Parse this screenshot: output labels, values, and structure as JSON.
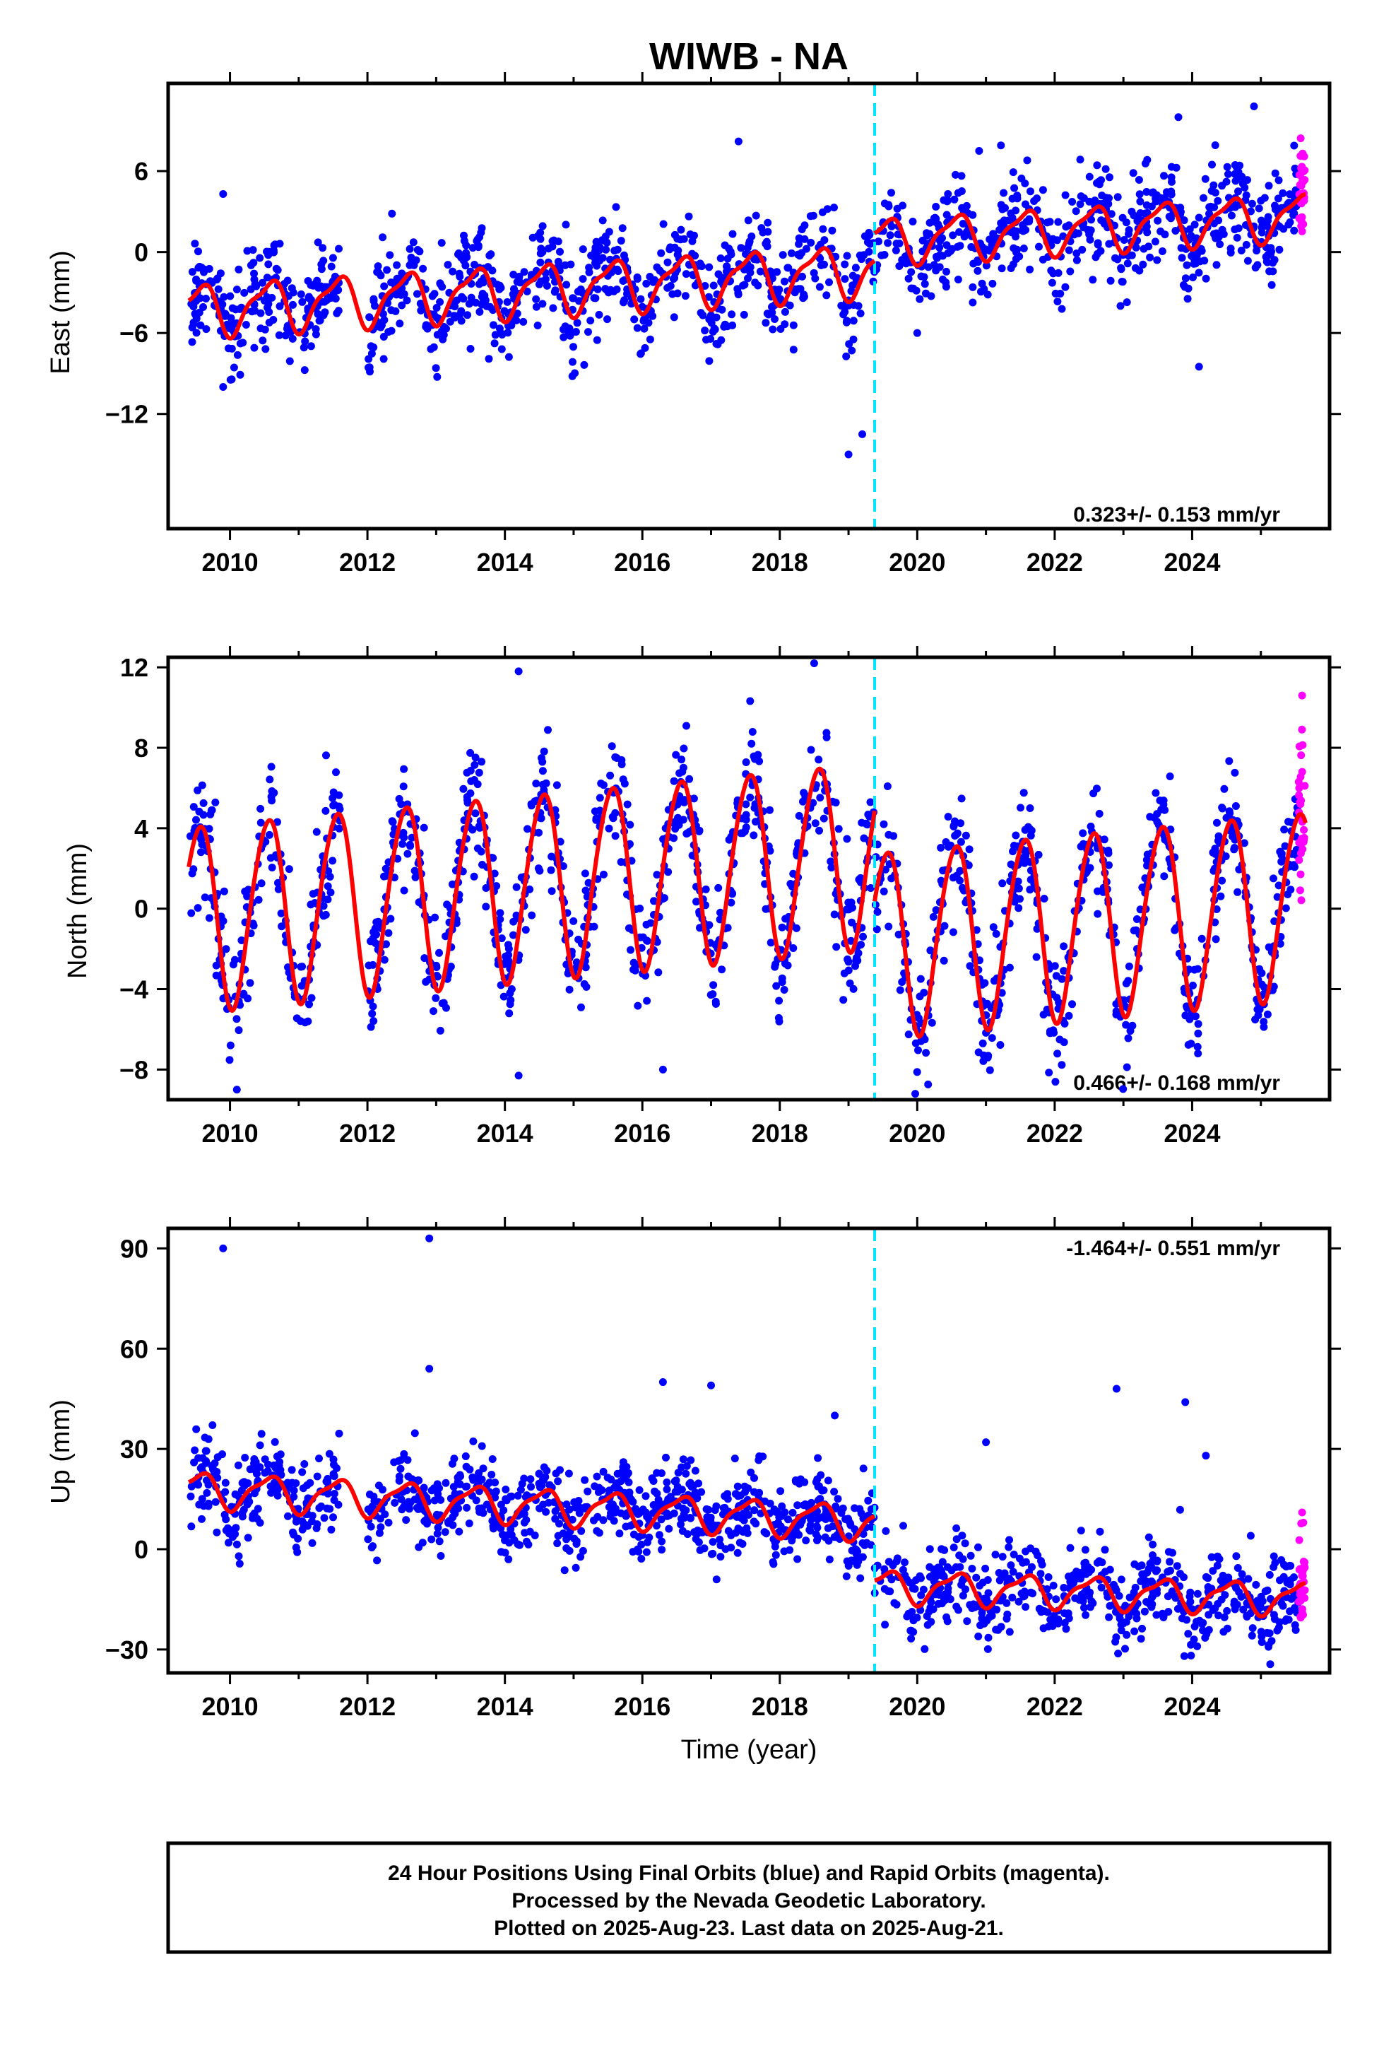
{
  "title": "WIWB - NA",
  "colors": {
    "final_orbits": "#0000ff",
    "rapid_orbits": "#ff00ff",
    "model": "#ff0000",
    "equipment_change": "#00e5ff",
    "frame": "#000000"
  },
  "xlabel": "Time (year)",
  "footer": {
    "line1": "24 Hour Positions Using Final Orbits (blue) and Rapid Orbits (magenta).",
    "line2": "Processed by the Nevada Geodetic Laboratory.",
    "line3": "Plotted on 2025-Aug-23. Last data on 2025-Aug-21."
  },
  "chart_data": [
    {
      "type": "scatter",
      "component": "east",
      "ylabel": "East (mm)",
      "rate_text": "0.323+/- 0.153 mm/yr",
      "xlim": [
        2009.1,
        2026.0
      ],
      "ylim": [
        -20.5,
        12.5
      ],
      "xticks": [
        2010,
        2012,
        2014,
        2016,
        2018,
        2020,
        2022,
        2024
      ],
      "xtick_labels": [
        "2010",
        "2012",
        "2014",
        "2016",
        "2018",
        "2020",
        "2022",
        "2024"
      ],
      "yticks": [
        6,
        0,
        -6,
        -12
      ],
      "ytick_labels": [
        "6",
        "0",
        "−12"
      ],
      "ytick_label_values": [
        6,
        0,
        -12
      ],
      "ytick_labels_all": [
        "6",
        "0",
        "−6",
        "−12"
      ],
      "equipment_change": 2019.38,
      "model": {
        "segments": [
          {
            "x0": 2009.4,
            "x1": 2019.38,
            "y0": -4.3,
            "trend": 0.3,
            "annual_amp": 1.8,
            "semi_amp": 0.6
          },
          {
            "x0": 2019.38,
            "x1": 2025.65,
            "y0": 0.8,
            "trend": 0.3,
            "annual_amp": 1.6,
            "semi_amp": 0.5
          }
        ]
      },
      "series": [
        {
          "name": "Final Orbits",
          "color": "#0000ff",
          "x_range": [
            2009.42,
            2025.55
          ],
          "gap": [
            2011.6,
            2012.0
          ],
          "spread": 1.8
        },
        {
          "name": "Rapid Orbits",
          "color": "#ff00ff",
          "x_range": [
            2025.55,
            2025.64
          ],
          "spread": 1.8
        }
      ],
      "outliers": [
        [
          2009.9,
          4.3
        ],
        [
          2017.4,
          8.2
        ],
        [
          2020.9,
          7.5
        ],
        [
          2021.6,
          6.8
        ],
        [
          2023.8,
          10.0
        ],
        [
          2024.9,
          10.8
        ],
        [
          2024.1,
          -8.5
        ],
        [
          2020.0,
          -6.0
        ],
        [
          2019.0,
          -15.0
        ],
        [
          2019.2,
          -13.5
        ],
        [
          2009.9,
          -10.0
        ]
      ]
    },
    {
      "type": "scatter",
      "component": "north",
      "ylabel": "North (mm)",
      "rate_text": "0.466+/- 0.168 mm/yr",
      "xlim": [
        2009.1,
        2026.0
      ],
      "ylim": [
        -9.5,
        12.5
      ],
      "xticks": [
        2010,
        2012,
        2014,
        2016,
        2018,
        2020,
        2022,
        2024
      ],
      "xtick_labels": [
        "2010",
        "2012",
        "2014",
        "2016",
        "2018",
        "2020",
        "2022",
        "2024"
      ],
      "yticks": [
        12,
        8,
        4,
        0,
        -4,
        -8
      ],
      "ytick_labels_all": [
        "12",
        "8",
        "4",
        "0",
        "−4",
        "−8"
      ],
      "equipment_change": 2019.38,
      "model": {
        "segments": [
          {
            "x0": 2009.4,
            "x1": 2019.38,
            "y0": -0.4,
            "trend": 0.32,
            "annual_amp": 4.6,
            "semi_amp": 0.4
          },
          {
            "x0": 2019.38,
            "x1": 2025.65,
            "y0": -1.7,
            "trend": 0.32,
            "annual_amp": 4.6,
            "semi_amp": 0.4
          }
        ]
      },
      "series": [
        {
          "name": "Final Orbits",
          "color": "#0000ff",
          "x_range": [
            2009.42,
            2025.55
          ],
          "gap": [
            2011.6,
            2012.0
          ],
          "spread": 1.5
        },
        {
          "name": "Rapid Orbits",
          "color": "#ff00ff",
          "x_range": [
            2025.55,
            2025.64
          ],
          "spread": 2.0
        }
      ],
      "outliers": [
        [
          2010.1,
          -9.0
        ],
        [
          2014.2,
          11.8
        ],
        [
          2018.5,
          12.2
        ],
        [
          2025.6,
          10.6
        ],
        [
          2016.3,
          -8.0
        ],
        [
          2014.2,
          -8.3
        ]
      ]
    },
    {
      "type": "scatter",
      "component": "up",
      "ylabel": "Up (mm)",
      "rate_text": "-1.464+/- 0.551 mm/yr",
      "xlim": [
        2009.1,
        2026.0
      ],
      "ylim": [
        -37,
        96
      ],
      "xticks": [
        2010,
        2012,
        2014,
        2016,
        2018,
        2020,
        2022,
        2024
      ],
      "xtick_labels": [
        "2010",
        "2012",
        "2014",
        "2016",
        "2018",
        "2020",
        "2022",
        "2024"
      ],
      "yticks": [
        90,
        60,
        30,
        0,
        -30
      ],
      "ytick_labels_all": [
        "90",
        "60",
        "30",
        "0",
        "−30"
      ],
      "equipment_change": 2019.38,
      "model": {
        "segments": [
          {
            "x0": 2009.4,
            "x1": 2019.38,
            "y0": 18.0,
            "trend": -1.0,
            "annual_amp": 5.0,
            "semi_amp": 1.5
          },
          {
            "x0": 2019.38,
            "x1": 2025.65,
            "y0": -11.0,
            "trend": -0.6,
            "annual_amp": 4.5,
            "semi_amp": 1.5
          }
        ]
      },
      "series": [
        {
          "name": "Final Orbits",
          "color": "#0000ff",
          "x_range": [
            2009.42,
            2025.55
          ],
          "gap": [
            2011.6,
            2012.0
          ],
          "spread": 6.0
        },
        {
          "name": "Rapid Orbits",
          "color": "#ff00ff",
          "x_range": [
            2025.55,
            2025.64
          ],
          "spread": 7.0
        }
      ],
      "outliers": [
        [
          2009.9,
          90.0
        ],
        [
          2012.9,
          93.0
        ],
        [
          2012.9,
          54.0
        ],
        [
          2016.3,
          50.0
        ],
        [
          2017.0,
          49.0
        ],
        [
          2021.0,
          32.0
        ],
        [
          2022.9,
          48.0
        ],
        [
          2023.9,
          44.0
        ],
        [
          2024.2,
          28.0
        ],
        [
          2025.6,
          11.0
        ],
        [
          2018.8,
          40.0
        ]
      ]
    }
  ]
}
